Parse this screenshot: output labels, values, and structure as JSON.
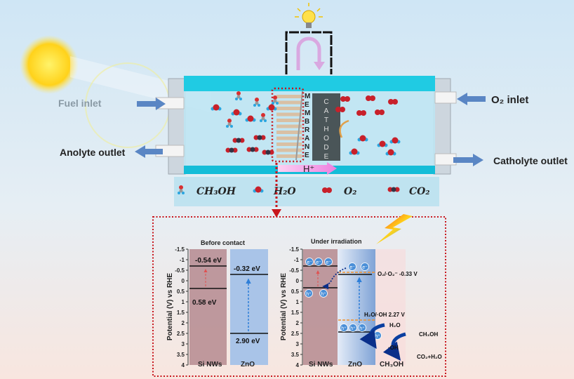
{
  "labels": {
    "fuel_inlet": "Fuel inlet",
    "anolyte_outlet": "Anolyte outlet",
    "o2_inlet": "O₂ inlet",
    "catholyte_outlet": "Catholyte outlet",
    "membrane": [
      "M",
      "E",
      "M",
      "B",
      "R",
      "A",
      "N",
      "E"
    ],
    "cathode": [
      "C",
      "A",
      "T",
      "H",
      "O",
      "D",
      "E"
    ],
    "proton": "H⁺"
  },
  "legend": [
    {
      "molecule": "CH₃OH"
    },
    {
      "molecule": "H₂O"
    },
    {
      "molecule": "O₂"
    },
    {
      "molecule": "CO₂"
    }
  ],
  "before_contact": {
    "title": "Before contact",
    "ylabel": "Potential (V) vs RHE",
    "ticks": [
      "-1.5",
      "-1",
      "-0.5",
      "0",
      "0.5",
      "1",
      "1.5",
      "2",
      "2.5",
      "3",
      "3.5",
      "4"
    ],
    "si_cb": "-0.54 eV",
    "si_vb": "0.58 eV",
    "zno_cb": "-0.32 eV",
    "zno_vb": "2.90 eV",
    "xlabels": [
      "Si NWs",
      "ZnO"
    ]
  },
  "under_irradiation": {
    "title": "Under irradiation",
    "ylabel": "Potential (V) vs RHE",
    "ticks": [
      "-1.5",
      "-1",
      "-0.5",
      "0",
      "0.5",
      "1",
      "1.5",
      "2",
      "2.5",
      "3",
      "3.5",
      "4"
    ],
    "o2_level": "O₂/·O₂⁻ -0.33 V",
    "oh_level": "H₂O/·OH 2.27 V",
    "electron": "e⁻",
    "hole": "h⁺",
    "h2o": "H₂O",
    "oh": "·OH",
    "ch3oh": "CH₃OH",
    "products": "CO₂+H₂O",
    "xlabels": [
      "Si NWs",
      "ZnO",
      "CH₃OH"
    ]
  },
  "colors": {
    "si": "#b58a8f",
    "zno": "#a9c4e8",
    "channel": "#19c6e0",
    "dotted": "#c8161d",
    "arrow": "#4a7fbf",
    "proton_arrow": "#f07ee0",
    "level": "#f0902a"
  }
}
